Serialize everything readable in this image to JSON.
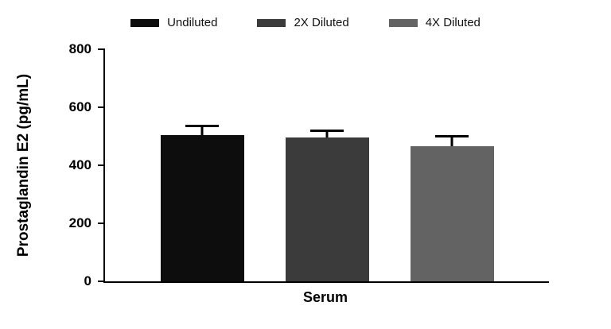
{
  "chart_data": {
    "type": "bar",
    "title": "",
    "categories": [
      "Serum"
    ],
    "series": [
      {
        "name": "Undiluted",
        "color": "#0d0d0d",
        "values": [
          505
        ],
        "error_upper": [
          35
        ]
      },
      {
        "name": "2X Diluted",
        "color": "#3b3b3b",
        "values": [
          497
        ],
        "error_upper": [
          26
        ]
      },
      {
        "name": "4X Diluted",
        "color": "#636363",
        "values": [
          465
        ],
        "error_upper": [
          38
        ]
      }
    ],
    "ylabel": "Prostaglandin E2 (pg/mL)",
    "xlabel": "Serum",
    "ylim": [
      0,
      800
    ],
    "yticks": [
      0,
      200,
      400,
      600,
      800
    ],
    "grid": false,
    "legend_position": "top"
  }
}
